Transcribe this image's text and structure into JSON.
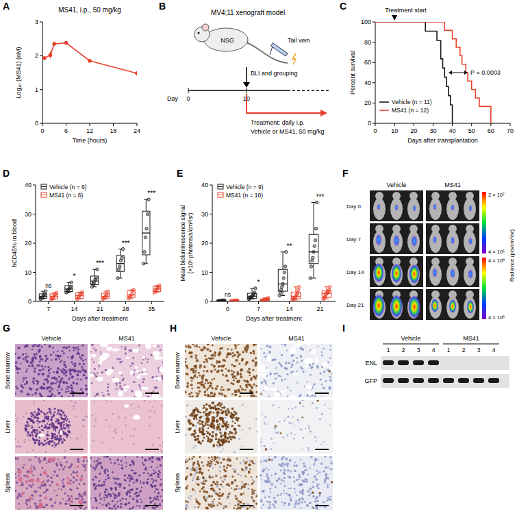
{
  "panel_labels": [
    "A",
    "B",
    "C",
    "D",
    "E",
    "F",
    "G",
    "H",
    "I"
  ],
  "chart_data": [
    {
      "type": "line",
      "title": "MS41, i.p., 50 mg/kg",
      "x_label": "Time (hours)",
      "y_label": "Log₁₀ (MS41) (nM)",
      "x": [
        0.5,
        2,
        3,
        6,
        12,
        24
      ],
      "series": [
        {
          "color": "#e8412c",
          "marker": "circle",
          "values": [
            1.93,
            2.02,
            2.35,
            2.38,
            1.85,
            1.48
          ],
          "errors": [
            0.03,
            0.1,
            0.05,
            0.06,
            0.03,
            0.06
          ]
        }
      ],
      "xlim": [
        0,
        24
      ],
      "xticks": [
        0,
        6,
        12,
        18,
        24
      ],
      "ylim": [
        0,
        3
      ],
      "yticks": [
        0,
        1,
        2,
        3
      ]
    },
    {
      "type": "survival",
      "x_label": "Days after transplantation",
      "y_label": "Percent survival",
      "series": [
        {
          "name": "Vehicle (n = 11)",
          "color": "#1a1a1a",
          "x": [
            0,
            26,
            32,
            34,
            35,
            36,
            37,
            38,
            39,
            40
          ],
          "values": [
            100,
            90.9,
            81.8,
            63.6,
            54.5,
            45.5,
            36.4,
            27.3,
            18.2,
            0
          ]
        },
        {
          "name": "MS41 (n = 12)",
          "color": "#e8412c",
          "x": [
            0,
            36,
            40,
            42,
            44,
            45,
            47,
            48,
            50,
            52,
            54,
            60
          ],
          "values": [
            100,
            91.7,
            83.3,
            75,
            66.7,
            58.3,
            50,
            41.7,
            33.3,
            25,
            16.7,
            0
          ]
        }
      ],
      "xlim": [
        0,
        70
      ],
      "xticks": [
        0,
        10,
        20,
        30,
        40,
        50,
        60,
        70
      ],
      "ylim": [
        0,
        100
      ],
      "yticks": [
        0,
        20,
        40,
        60,
        80,
        100
      ],
      "legend": "lower left",
      "annotations": [
        {
          "text": "Treatment start",
          "x": 10
        },
        {
          "text": "P = 0.0003",
          "x": [
            38,
            48
          ],
          "y": 50
        }
      ]
    },
    {
      "type": "box",
      "x_label": "Days after treatment",
      "y_label": "hCD45% in blood",
      "categories": [
        7,
        14,
        21,
        28,
        35
      ],
      "series": [
        {
          "name": "Vehicle (n = 6)",
          "color": "#1a1a1a",
          "values": [
            [
              0.8,
              1.2,
              1.5,
              2.0,
              2.5,
              3.5
            ],
            [
              3,
              3.5,
              4,
              4.5,
              5,
              6.5
            ],
            [
              5,
              6,
              6.5,
              7.5,
              8,
              11
            ],
            [
              8,
              11,
              12,
              14,
              15,
              18
            ],
            [
              13,
              17,
              22,
              25,
              30,
              35
            ]
          ],
          "boxes": [
            [
              0.8,
              1.1,
              1.75,
              2.6,
              3.5
            ],
            [
              3,
              3.4,
              4.25,
              5.4,
              6.5
            ],
            [
              5,
              5.8,
              7,
              8.7,
              11
            ],
            [
              8,
              10.3,
              13,
              15.8,
              18
            ],
            [
              13,
              16,
              23.5,
              31,
              35
            ]
          ]
        },
        {
          "name": "MS41 (n = 6)",
          "color": "#e8412c",
          "values": [
            [
              0.7,
              1.0,
              1.5,
              2.0,
              2.5,
              3.0
            ],
            [
              0.8,
              1.2,
              1.8,
              2.2,
              2.8,
              3.2
            ],
            [
              0.8,
              1.2,
              1.5,
              2,
              2.5,
              3.5
            ],
            [
              1,
              1.5,
              2,
              2.5,
              3.5,
              4
            ],
            [
              3,
              3.5,
              4,
              4.5,
              5,
              5.5
            ]
          ],
          "boxes": [
            [
              0.7,
              0.9,
              1.75,
              2.6,
              3.0
            ],
            [
              0.8,
              1.1,
              2.0,
              2.9,
              3.2
            ],
            [
              0.8,
              1.1,
              1.75,
              2.8,
              3.5
            ],
            [
              1,
              1.4,
              2.25,
              3.6,
              4
            ],
            [
              3,
              3.4,
              4.25,
              5.1,
              5.5
            ]
          ]
        }
      ],
      "ylim": [
        0,
        40
      ],
      "yticks": [
        0,
        10,
        20,
        30,
        40
      ],
      "legend": "upper left",
      "significance": [
        "ns",
        "*",
        "***",
        "***",
        "***"
      ]
    },
    {
      "type": "box",
      "x_label": "Days after treatment",
      "y_label": [
        "Mean bioluminescence signal",
        "(×10⁶ photons/s/cm²/sr)"
      ],
      "categories": [
        0,
        7,
        14,
        21
      ],
      "series": [
        {
          "name": "Vehicle (n = 9)",
          "color": "#1a1a1a",
          "values": [
            [
              0.1,
              0.15,
              0.2,
              0.2,
              0.25,
              0.3,
              0.3,
              0.35,
              0.4
            ],
            [
              0.8,
              1,
              1.2,
              1.5,
              1.8,
              2,
              2.5,
              3,
              4.5
            ],
            [
              2,
              3,
              4,
              5,
              6,
              8,
              10,
              12,
              17
            ],
            [
              8,
              12,
              14,
              15,
              17,
              19,
              21,
              25,
              34
            ]
          ],
          "boxes": [
            [
              0.1,
              0.18,
              0.25,
              0.32,
              0.4
            ],
            [
              0.8,
              1.1,
              1.8,
              2.8,
              4.5
            ],
            [
              2,
              3.5,
              6,
              11,
              17
            ],
            [
              8,
              13,
              17,
              23,
              34
            ]
          ]
        },
        {
          "name": "MS41 (n = 10)",
          "color": "#e8412c",
          "values": [
            [
              0.1,
              0.1,
              0.15,
              0.2,
              0.2,
              0.25,
              0.3,
              0.3,
              0.35,
              0.4
            ],
            [
              0.2,
              0.3,
              0.4,
              0.5,
              0.5,
              0.6,
              0.7,
              0.8,
              1,
              1.2
            ],
            [
              0.5,
              0.8,
              1,
              1.2,
              1.5,
              2,
              2.5,
              3,
              4,
              5
            ],
            [
              0.8,
              1.2,
              1.5,
              2,
              2.5,
              3,
              3,
              3.5,
              4,
              5
            ]
          ],
          "boxes": [
            [
              0.1,
              0.14,
              0.22,
              0.3,
              0.4
            ],
            [
              0.2,
              0.38,
              0.55,
              0.85,
              1.2
            ],
            [
              0.5,
              0.95,
              1.75,
              3.2,
              5
            ],
            [
              0.8,
              1.4,
              2.75,
              3.6,
              5
            ]
          ]
        }
      ],
      "ylim": [
        0,
        40
      ],
      "yticks": [
        0,
        10,
        20,
        30,
        40
      ],
      "legend": "upper left",
      "significance": [
        "ns",
        "*",
        "**",
        "***"
      ]
    }
  ],
  "schematic": {
    "title": "MV4;11 xenograft model",
    "route": "Tail vein",
    "strain": "NSG",
    "day_label": "Day",
    "days": [
      0,
      10
    ],
    "event": "BLI and grouping",
    "treatment": [
      "Treatment: daily i.p.",
      "Vehicle or MS41, 50 mg/kg"
    ]
  },
  "bli_images": {
    "columns": [
      "Vehicle",
      "MS41"
    ],
    "rows": [
      "Day 0",
      "Day 7",
      "Day 14",
      "Day 21"
    ],
    "colorbar_top": [
      "2 × 10⁷",
      "4 × 10⁵"
    ],
    "colorbar_bottom": [
      "4 × 10⁸",
      "4 × 10⁶"
    ],
    "colorbar_label": "Radiance (p/s/cm²/sr)"
  },
  "he_staining": {
    "columns": [
      "Vehicle",
      "MS41"
    ],
    "rows": [
      "Bone marrow",
      "Liver",
      "Spleen"
    ]
  },
  "ihc_staining": {
    "columns": [
      "Vehicle",
      "MS41"
    ],
    "rows": [
      "Bone marrow",
      "Liver",
      "Spleen"
    ]
  },
  "western_blot": {
    "groups": [
      "Vehicle",
      "MS41"
    ],
    "lanes": [
      "1",
      "2",
      "3",
      "4",
      "1",
      "2",
      "3",
      "4"
    ],
    "rows": [
      "ENL",
      "GFP"
    ],
    "band_present": [
      [
        true,
        true,
        true,
        true,
        false,
        false,
        false,
        false
      ],
      [
        true,
        true,
        true,
        true,
        true,
        true,
        true,
        true
      ]
    ]
  }
}
